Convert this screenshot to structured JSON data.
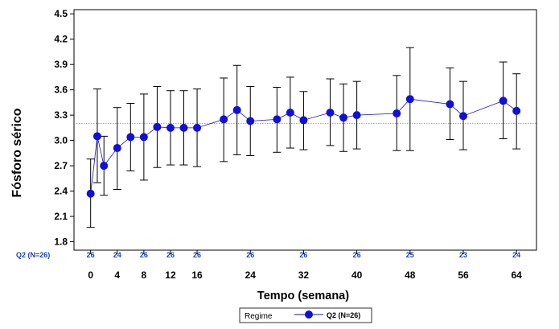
{
  "chart_data": {
    "type": "line",
    "title": "",
    "xlabel": "Tempo (semana)",
    "ylabel": "Fósforo sérico",
    "x_ticks": [
      0,
      4,
      8,
      12,
      16,
      24,
      32,
      40,
      48,
      56,
      64
    ],
    "x_tick_labels": [
      "0",
      "4",
      "8",
      "12",
      "16",
      "24",
      "32",
      "40",
      "48",
      "56",
      "64"
    ],
    "y_ticks": [
      1.8,
      2.1,
      2.4,
      2.7,
      3.0,
      3.3,
      3.6,
      3.9,
      4.2,
      4.5
    ],
    "y_tick_labels": [
      "1.8",
      "2.1",
      "2.4",
      "2.7",
      "3.0",
      "3.3",
      "3.6",
      "3.9",
      "4.2",
      "4.5"
    ],
    "xlim": [
      -2.5,
      67
    ],
    "ylim": [
      1.7,
      4.55
    ],
    "reference_line": 3.2,
    "grid": false,
    "legend": {
      "position": "bottom-center",
      "title": "Regime",
      "entry": "Q2 (N=26)"
    },
    "n_row": {
      "label": "Q2 (N=26)",
      "x": [
        0,
        4,
        8,
        12,
        16,
        24,
        32,
        40,
        48,
        56,
        64
      ],
      "values": [
        "26",
        "24",
        "26",
        "26",
        "26",
        "26",
        "26",
        "26",
        "25",
        "23",
        "24"
      ]
    },
    "series": [
      {
        "name": "Q2 (N=26)",
        "color": "#1010d8",
        "x": [
          0,
          1,
          2,
          4,
          6,
          8,
          10,
          12,
          14,
          16,
          20,
          22,
          24,
          28,
          30,
          32,
          36,
          38,
          40,
          46,
          48,
          54,
          56,
          62,
          64
        ],
        "y": [
          2.37,
          3.05,
          2.7,
          2.91,
          3.04,
          3.04,
          3.16,
          3.15,
          3.15,
          3.15,
          3.25,
          3.36,
          3.23,
          3.25,
          3.33,
          3.24,
          3.33,
          3.27,
          3.3,
          3.32,
          3.49,
          3.43,
          3.29,
          3.47,
          3.35
        ],
        "lower": [
          1.97,
          2.5,
          2.35,
          2.42,
          2.64,
          2.53,
          2.68,
          2.71,
          2.71,
          2.69,
          2.75,
          2.83,
          2.82,
          2.86,
          2.91,
          2.89,
          2.94,
          2.87,
          2.9,
          2.88,
          2.88,
          3.01,
          2.89,
          3.02,
          2.9
        ],
        "upper": [
          2.78,
          3.61,
          3.05,
          3.39,
          3.44,
          3.55,
          3.64,
          3.59,
          3.59,
          3.61,
          3.74,
          3.89,
          3.64,
          3.63,
          3.75,
          3.58,
          3.73,
          3.67,
          3.7,
          3.77,
          4.1,
          3.86,
          3.7,
          3.93,
          3.79
        ]
      }
    ]
  }
}
